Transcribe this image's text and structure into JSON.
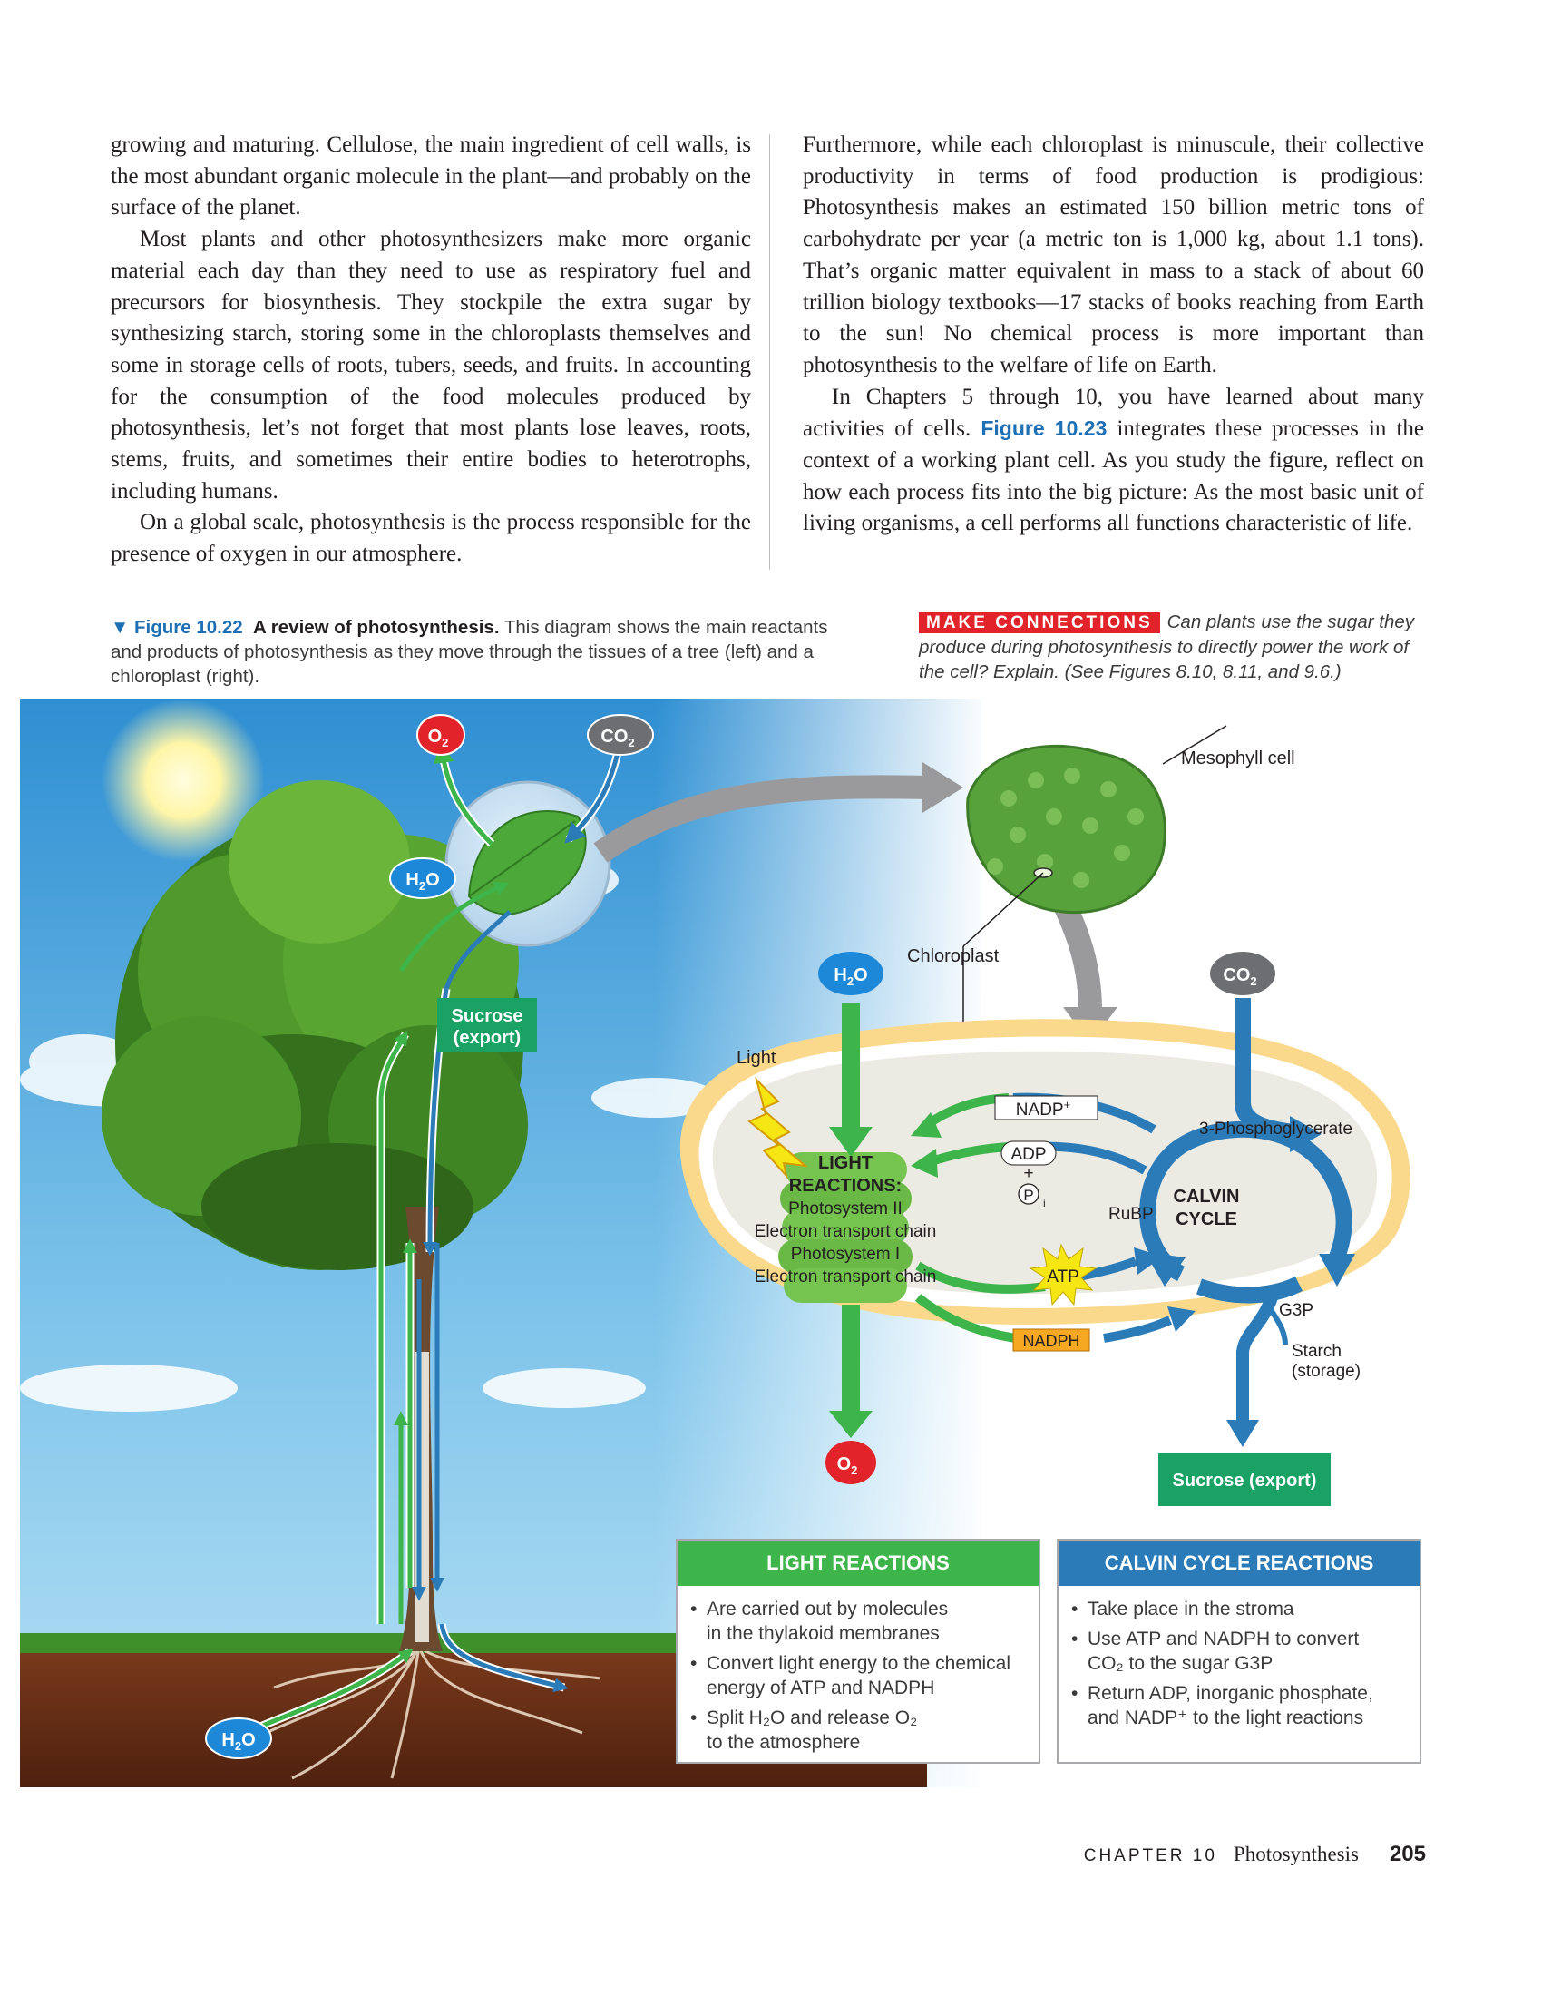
{
  "body": {
    "left_paragraphs": [
      "growing and maturing. Cellulose, the main ingredient of cell walls, is the most abundant organic molecule in the plant—and probably on the surface of the planet.",
      "Most plants and other photosynthesizers make more organic material each day than they need to use as respiratory fuel and precursors for biosynthesis. They stockpile the extra sugar by synthesizing starch, storing some in the chloroplasts themselves and some in storage cells of roots, tubers, seeds, and fruits. In accounting for the consumption of the food molecules produced by photosynthesis, let’s not forget that most plants lose leaves, roots, stems, fruits, and sometimes their entire bodies to heterotrophs, including humans.",
      "On a global scale, photosynthesis is the process responsible for the presence of oxygen in our atmosphere."
    ],
    "right_p1": "Furthermore, while each chloroplast is minuscule, their collective productivity in terms of food production is prodigious: Photosynthesis makes an estimated 150 billion metric tons of carbohydrate per year (a metric ton is 1,000 kg, about 1.1 tons). That’s organic matter equivalent in mass to a stack of about 60 trillion biology textbooks—17 stacks of books reaching from Earth to the sun! No chemical process is more important than photosynthesis to the welfare of life on Earth.",
    "right_p2_before": "In Chapters 5 through 10, you have learned about many activities of cells.",
    "right_p2_ref": "Figure 10.23",
    "right_p2_after": "integrates these processes in the context of a working plant cell. As you study the figure, reflect on how each process fits into the big picture: As the most basic unit of living organisms, a cell performs all functions characteristic of life."
  },
  "caption": {
    "marker": "▼",
    "number": "Figure 10.22",
    "title": "A review of photosynthesis.",
    "text": "This diagram shows the main reactants and products of photosynthesis as they move through the tissues of a tree (left) and a chloroplast (right)."
  },
  "make_connections": {
    "label": "MAKE CONNECTIONS",
    "text": "Can plants use the sugar they produce during photosynthesis to directly power the work of the cell? Explain. (See Figures 8.10, 8.11, and 9.6.)"
  },
  "diagram": {
    "o2_top": "O",
    "co2_top": "CO",
    "h2o_tree": "H",
    "sucrose_tree": [
      "Sucrose",
      "(export)"
    ],
    "h2o_root": "H",
    "sub2": "2",
    "o_letter": "O",
    "mesophyll": "Mesophyll cell",
    "chloroplast": "Chloroplast",
    "light": "Light",
    "h2o_chl": "H",
    "co2_chl": "CO",
    "nadp_plus": "NADP",
    "plus_sup": "+",
    "adp": "ADP",
    "plus": "+",
    "pi": "P",
    "pi_sub": "i",
    "light_reactions": [
      "LIGHT",
      "REACTIONS:"
    ],
    "light_parts": [
      "Photosystem II",
      "Electron transport chain",
      "Photosystem I",
      "Electron transport chain"
    ],
    "atp": "ATP",
    "nadph": "NADPH",
    "pga": "3-Phosphoglycerate",
    "rubp": "RuBP",
    "calvin": [
      "CALVIN",
      "CYCLE"
    ],
    "g3p": "G3P",
    "starch": [
      "Starch",
      "(storage)"
    ],
    "o2_chl": "O",
    "sucrose_chl": "Sucrose (export)"
  },
  "light_box": {
    "header": "LIGHT REACTIONS",
    "items": [
      [
        "Are carried out by molecules",
        "in the thylakoid membranes"
      ],
      [
        "Convert light energy to the chemical",
        "energy of ATP and NADPH"
      ],
      [
        "Split H₂O and release O₂",
        "to the atmosphere"
      ]
    ]
  },
  "calvin_box": {
    "header": "CALVIN CYCLE REACTIONS",
    "items": [
      [
        "Take place in the stroma"
      ],
      [
        "Use ATP and NADPH to convert",
        "CO₂ to the sugar G3P"
      ],
      [
        "Return ADP, inorganic phosphate,",
        "and NADP⁺ to the light reactions"
      ]
    ]
  },
  "footer": {
    "chapter": "CHAPTER 10",
    "title": "Photosynthesis",
    "page": "205"
  },
  "colors": {
    "green": "#3db54a",
    "blue": "#2b7bb9",
    "red_badge": "#e2232a",
    "gray_badge": "#6d6e71",
    "blue_badge": "#1e88d8",
    "sucrose_green": "#1aa164",
    "atp_yellow": "#f5e614",
    "nadph_orange": "#f7a823",
    "stroma": "#ecebe3",
    "envelope": "#fbd98c"
  }
}
